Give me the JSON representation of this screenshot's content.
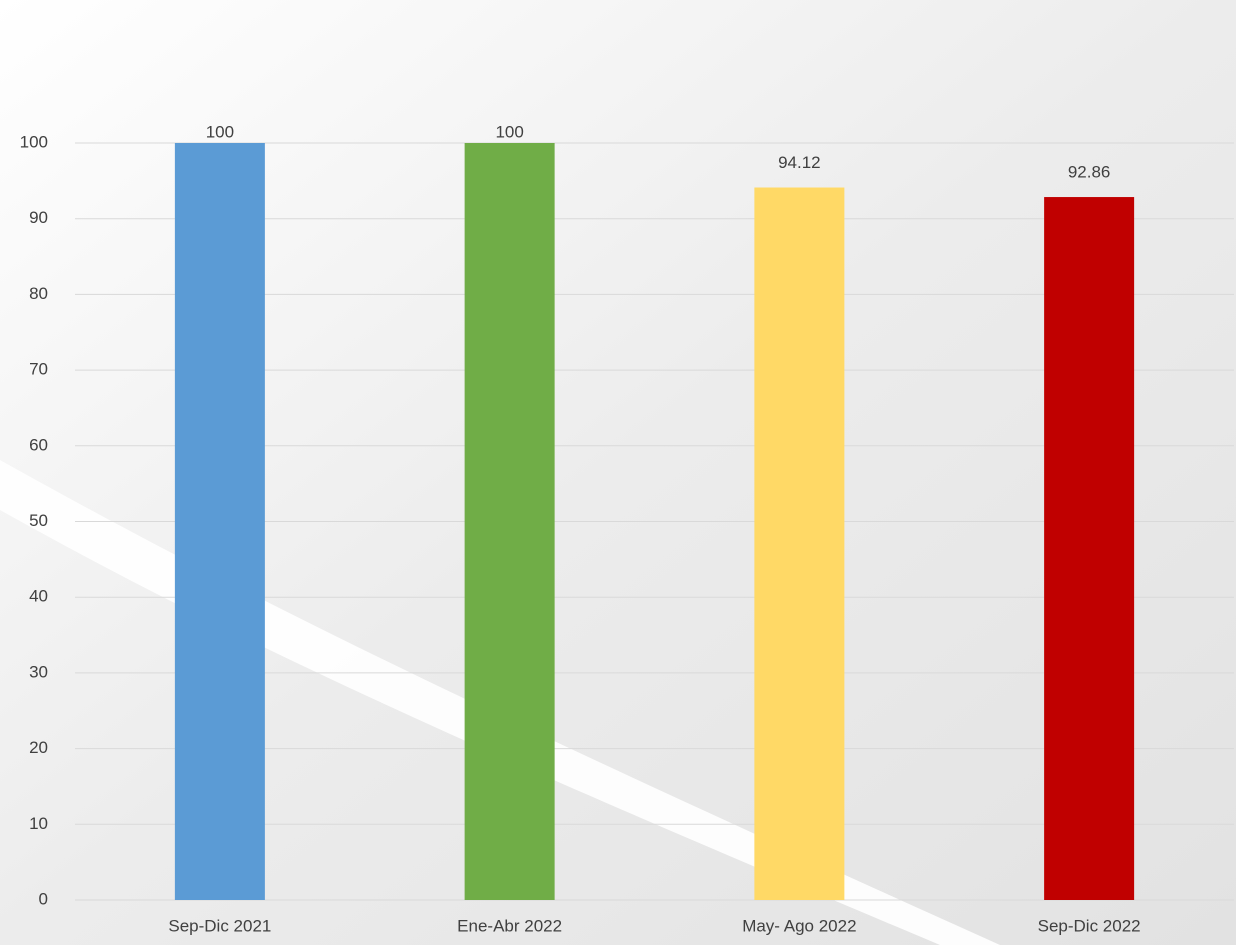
{
  "chart_data": {
    "type": "bar",
    "categories": [
      "Sep-Dic 2021",
      "Ene-Abr 2022",
      "May- Ago 2022",
      "Sep-Dic 2022"
    ],
    "values": [
      100,
      100,
      94.12,
      92.86
    ],
    "colors": [
      "#5b9bd5",
      "#70ad47",
      "#ffd966",
      "#c00000"
    ],
    "ylim": [
      0,
      100
    ],
    "yticks": [
      0,
      10,
      20,
      30,
      40,
      50,
      60,
      70,
      80,
      90,
      100
    ],
    "grid": true
  }
}
